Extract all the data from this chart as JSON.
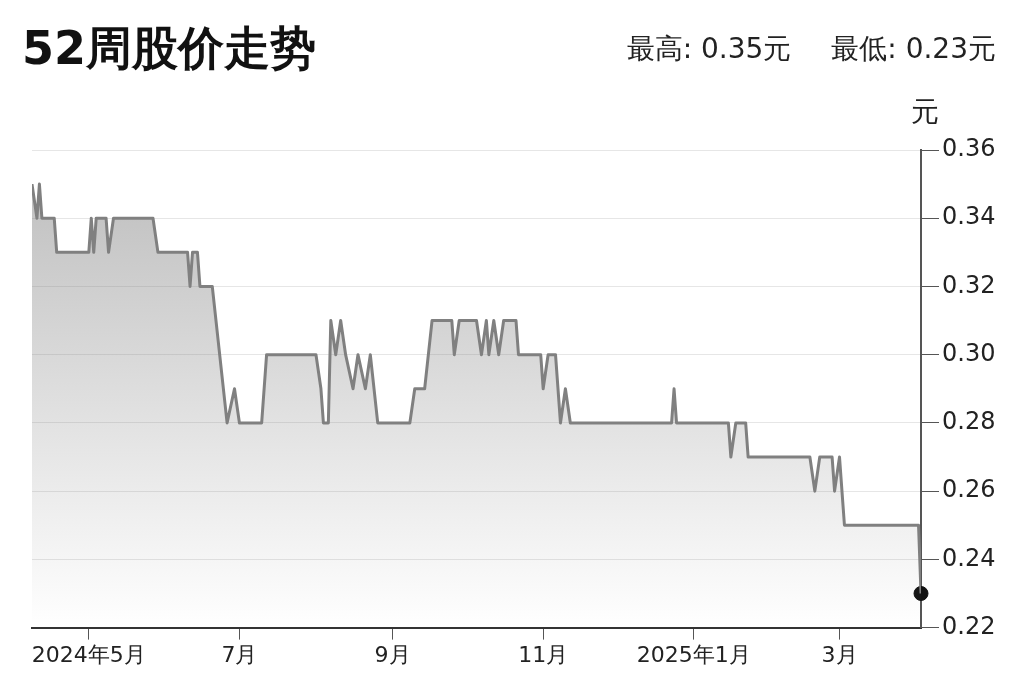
{
  "chart_data": {
    "type": "area",
    "title": "52周股价走势",
    "ylabel": "元",
    "annotations": [
      "最高: 0.35元",
      "最低: 0.23元"
    ],
    "series": [
      {
        "color": "#808080",
        "x": [
          "2024-04-08",
          "2024-04-10",
          "2024-04-11",
          "2024-04-12",
          "2024-04-17",
          "2024-04-18",
          "2024-05-01",
          "2024-05-02",
          "2024-05-03",
          "2024-05-04",
          "2024-05-08",
          "2024-05-09",
          "2024-05-11",
          "2024-05-27",
          "2024-05-29",
          "2024-06-10",
          "2024-06-11",
          "2024-06-12",
          "2024-06-14",
          "2024-06-15",
          "2024-06-20",
          "2024-06-26",
          "2024-06-29",
          "2024-07-01",
          "2024-07-10",
          "2024-07-12",
          "2024-08-01",
          "2024-08-03",
          "2024-08-04",
          "2024-08-06",
          "2024-08-07",
          "2024-08-09",
          "2024-08-11",
          "2024-08-13",
          "2024-08-16",
          "2024-08-18",
          "2024-08-21",
          "2024-08-23",
          "2024-08-26",
          "2024-09-08",
          "2024-09-10",
          "2024-09-14",
          "2024-09-17",
          "2024-09-25",
          "2024-09-26",
          "2024-09-28",
          "2024-10-05",
          "2024-10-07",
          "2024-10-09",
          "2024-10-10",
          "2024-10-12",
          "2024-10-14",
          "2024-10-16",
          "2024-10-21",
          "2024-10-22",
          "2024-10-31",
          "2024-11-01",
          "2024-11-03",
          "2024-11-06",
          "2024-11-08",
          "2024-11-10",
          "2024-11-12",
          "2024-12-23",
          "2024-12-24",
          "2024-12-25",
          "2025-01-15",
          "2025-01-16",
          "2025-01-18",
          "2025-01-22",
          "2025-01-23",
          "2025-02-17",
          "2025-02-19",
          "2025-02-21",
          "2025-02-26",
          "2025-02-27",
          "2025-03-01",
          "2025-03-03",
          "2025-04-02",
          "2025-04-03"
        ],
        "values": [
          0.35,
          0.34,
          0.35,
          0.34,
          0.34,
          0.33,
          0.33,
          0.34,
          0.33,
          0.34,
          0.34,
          0.33,
          0.34,
          0.34,
          0.33,
          0.33,
          0.32,
          0.33,
          0.33,
          0.32,
          0.32,
          0.28,
          0.29,
          0.28,
          0.28,
          0.3,
          0.3,
          0.29,
          0.28,
          0.28,
          0.31,
          0.3,
          0.31,
          0.3,
          0.29,
          0.3,
          0.29,
          0.3,
          0.28,
          0.28,
          0.29,
          0.29,
          0.31,
          0.31,
          0.3,
          0.31,
          0.31,
          0.3,
          0.31,
          0.3,
          0.31,
          0.3,
          0.31,
          0.31,
          0.3,
          0.3,
          0.29,
          0.3,
          0.3,
          0.28,
          0.29,
          0.28,
          0.28,
          0.29,
          0.28,
          0.28,
          0.27,
          0.28,
          0.28,
          0.27,
          0.27,
          0.26,
          0.27,
          0.27,
          0.26,
          0.27,
          0.25,
          0.25,
          0.23
        ]
      },
      {
        "type": "scatter",
        "color": "#111111",
        "x": [
          "2025-04-03"
        ],
        "values": [
          0.23
        ]
      }
    ],
    "xlim": [
      "2024-04-08",
      "2025-04-03"
    ],
    "xticks": [
      {
        "value": "2024-05-01",
        "label": "2024年5月"
      },
      {
        "value": "2024-07-01",
        "label": "7月"
      },
      {
        "value": "2024-09-01",
        "label": "9月"
      },
      {
        "value": "2024-11-01",
        "label": "11月"
      },
      {
        "value": "2025-01-01",
        "label": "2025年1月"
      },
      {
        "value": "2025-03-01",
        "label": "3月"
      }
    ],
    "ylim": [
      0.22,
      0.36
    ],
    "yticks": [
      0.22,
      0.24,
      0.26,
      0.28,
      {
        "value": 0.3,
        "label": "0.30"
      },
      0.32,
      0.34,
      0.36
    ],
    "grid": "y",
    "legend": false
  }
}
